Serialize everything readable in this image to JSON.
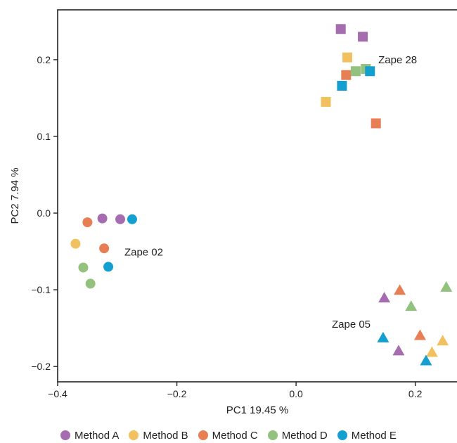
{
  "chart_data": {
    "type": "scatter",
    "title": "",
    "xlabel": "PC1 19.45 %",
    "ylabel": "PC2 7.94 %",
    "xlim": [
      -0.4,
      0.27
    ],
    "ylim": [
      -0.22,
      0.265
    ],
    "xticks": [
      {
        "value": -0.4,
        "label": "−0.4"
      },
      {
        "value": -0.2,
        "label": "−0.2"
      },
      {
        "value": 0.0,
        "label": "0.0"
      },
      {
        "value": 0.2,
        "label": "0.2"
      }
    ],
    "yticks": [
      {
        "value": -0.2,
        "label": "−0.2"
      },
      {
        "value": -0.1,
        "label": "−0.1"
      },
      {
        "value": 0.0,
        "label": "0.0"
      },
      {
        "value": 0.1,
        "label": "0.1"
      },
      {
        "value": 0.2,
        "label": "0.2"
      }
    ],
    "grid": false,
    "legend_position": "bottom",
    "series": [
      {
        "name": "Method A",
        "color": "#a56db0",
        "points": [
          {
            "x": 0.075,
            "y": 0.24,
            "shape": "square"
          },
          {
            "x": 0.112,
            "y": 0.23,
            "shape": "square"
          },
          {
            "x": -0.325,
            "y": -0.007,
            "shape": "circle"
          },
          {
            "x": -0.295,
            "y": -0.008,
            "shape": "circle"
          },
          {
            "x": 0.148,
            "y": -0.111,
            "shape": "triangle"
          },
          {
            "x": 0.172,
            "y": -0.18,
            "shape": "triangle"
          }
        ]
      },
      {
        "name": "Method B",
        "color": "#f1c15f",
        "points": [
          {
            "x": 0.086,
            "y": 0.203,
            "shape": "square"
          },
          {
            "x": 0.05,
            "y": 0.145,
            "shape": "square"
          },
          {
            "x": -0.37,
            "y": -0.04,
            "shape": "circle"
          },
          {
            "x": 0.246,
            "y": -0.167,
            "shape": "triangle"
          },
          {
            "x": 0.228,
            "y": -0.182,
            "shape": "triangle"
          }
        ]
      },
      {
        "name": "Method C",
        "color": "#e87e54",
        "points": [
          {
            "x": 0.084,
            "y": 0.18,
            "shape": "square"
          },
          {
            "x": 0.134,
            "y": 0.117,
            "shape": "square"
          },
          {
            "x": -0.35,
            "y": -0.012,
            "shape": "circle"
          },
          {
            "x": -0.322,
            "y": -0.046,
            "shape": "circle"
          },
          {
            "x": 0.174,
            "y": -0.101,
            "shape": "triangle"
          },
          {
            "x": 0.208,
            "y": -0.16,
            "shape": "triangle"
          }
        ]
      },
      {
        "name": "Method D",
        "color": "#93c17e",
        "points": [
          {
            "x": 0.1,
            "y": 0.185,
            "shape": "square"
          },
          {
            "x": 0.117,
            "y": 0.188,
            "shape": "square"
          },
          {
            "x": -0.357,
            "y": -0.071,
            "shape": "circle"
          },
          {
            "x": -0.345,
            "y": -0.092,
            "shape": "circle"
          },
          {
            "x": 0.193,
            "y": -0.122,
            "shape": "triangle"
          },
          {
            "x": 0.252,
            "y": -0.097,
            "shape": "triangle"
          }
        ]
      },
      {
        "name": "Method E",
        "color": "#149fd1",
        "points": [
          {
            "x": 0.124,
            "y": 0.185,
            "shape": "square"
          },
          {
            "x": 0.077,
            "y": 0.166,
            "shape": "square"
          },
          {
            "x": -0.275,
            "y": -0.008,
            "shape": "circle"
          },
          {
            "x": -0.315,
            "y": -0.07,
            "shape": "circle"
          },
          {
            "x": 0.146,
            "y": -0.163,
            "shape": "triangle"
          },
          {
            "x": 0.218,
            "y": -0.193,
            "shape": "triangle"
          }
        ]
      }
    ],
    "annotations": [
      {
        "text": "Zape 28",
        "x": 0.138,
        "y": 0.2
      },
      {
        "text": "Zape 02",
        "x": -0.288,
        "y": -0.051
      },
      {
        "text": "Zape 05",
        "x": 0.06,
        "y": -0.145
      }
    ]
  }
}
